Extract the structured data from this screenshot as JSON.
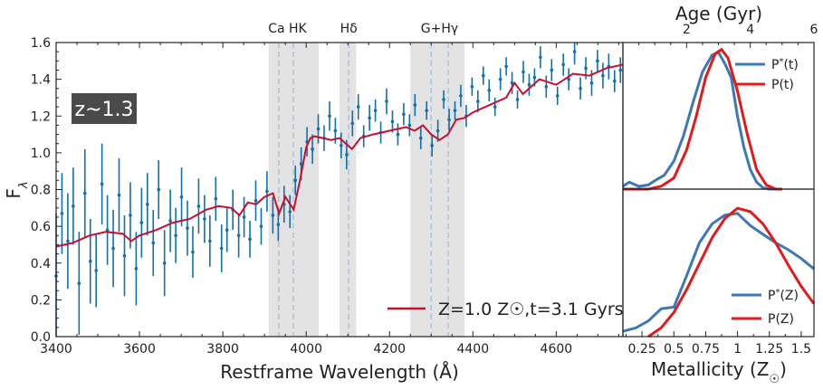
{
  "chart_data": [
    {
      "type": "line",
      "panel": "spectrum",
      "xlabel": "Restframe Wavelength (Å)",
      "ylabel": "Fλ",
      "xlim": [
        3400,
        4760
      ],
      "ylim": [
        0.0,
        1.6
      ],
      "xticks": [
        3400,
        3600,
        3800,
        4000,
        4200,
        4400,
        4600
      ],
      "yticks": [
        0.0,
        0.2,
        0.4,
        0.6,
        0.8,
        1.0,
        1.2,
        1.4,
        1.6
      ],
      "badge": "z~1.3",
      "line_labels": [
        {
          "text": "Ca HK",
          "x": 3955
        },
        {
          "text": "Hδ",
          "x": 4102
        },
        {
          "text": "G+Hγ",
          "x": 4320
        }
      ],
      "shaded_bands": [
        [
          3910,
          4030
        ],
        [
          4080,
          4120
        ],
        [
          4250,
          4380
        ]
      ],
      "line_markers": [
        3934,
        3969,
        4102,
        4300,
        4341
      ],
      "legend": "Z=1.0 Z☉,t=3.1 Gyrs",
      "series": [
        {
          "name": "Z=1.0 Z☉,t=3.1 Gyrs",
          "style": "line",
          "color": "#c8102e",
          "x": [
            3400,
            3440,
            3480,
            3520,
            3560,
            3580,
            3600,
            3640,
            3680,
            3720,
            3760,
            3790,
            3820,
            3840,
            3860,
            3880,
            3900,
            3920,
            3935,
            3950,
            3970,
            3985,
            4000,
            4010,
            4020,
            4040,
            4060,
            4080,
            4100,
            4110,
            4130,
            4160,
            4200,
            4240,
            4260,
            4280,
            4300,
            4320,
            4340,
            4360,
            4380,
            4400,
            4440,
            4480,
            4500,
            4520,
            4560,
            4600,
            4640,
            4680,
            4720,
            4760
          ],
          "y": [
            0.49,
            0.51,
            0.55,
            0.57,
            0.56,
            0.52,
            0.55,
            0.58,
            0.62,
            0.64,
            0.69,
            0.71,
            0.7,
            0.66,
            0.73,
            0.72,
            0.76,
            0.78,
            0.67,
            0.76,
            0.69,
            0.85,
            1.03,
            1.08,
            1.09,
            1.08,
            1.07,
            1.08,
            1.04,
            1.02,
            1.08,
            1.1,
            1.12,
            1.14,
            1.12,
            1.15,
            1.1,
            1.07,
            1.1,
            1.18,
            1.19,
            1.22,
            1.26,
            1.3,
            1.38,
            1.32,
            1.4,
            1.37,
            1.43,
            1.42,
            1.46,
            1.48
          ]
        },
        {
          "name": "",
          "style": "errorbar",
          "color": "#1170aa",
          "x": [
            3400,
            3414,
            3428,
            3441,
            3455,
            3469,
            3482,
            3496,
            3510,
            3523,
            3537,
            3551,
            3564,
            3578,
            3592,
            3605,
            3619,
            3633,
            3646,
            3660,
            3674,
            3687,
            3701,
            3715,
            3728,
            3742,
            3756,
            3769,
            3783,
            3797,
            3810,
            3824,
            3838,
            3851,
            3865,
            3879,
            3892,
            3906,
            3920,
            3933,
            3947,
            3961,
            3974,
            3988,
            4002,
            4015,
            4029,
            4043,
            4056,
            4070,
            4084,
            4097,
            4111,
            4125,
            4138,
            4152,
            4166,
            4179,
            4193,
            4207,
            4220,
            4234,
            4248,
            4261,
            4275,
            4289,
            4302,
            4316,
            4330,
            4343,
            4357,
            4371,
            4384,
            4398,
            4412,
            4425,
            4439,
            4453,
            4466,
            4480,
            4494,
            4507,
            4521,
            4535,
            4548,
            4562,
            4576,
            4589,
            4603,
            4617,
            4630,
            4644,
            4658,
            4671,
            4685,
            4699,
            4712,
            4726,
            4740,
            4754
          ],
          "y": [
            0.33,
            0.67,
            0.52,
            0.71,
            0.29,
            0.78,
            0.41,
            0.36,
            0.83,
            0.58,
            0.48,
            0.77,
            0.44,
            0.66,
            0.37,
            0.62,
            0.72,
            0.51,
            0.8,
            0.4,
            0.63,
            0.55,
            0.76,
            0.59,
            0.46,
            0.71,
            0.64,
            0.52,
            0.75,
            0.48,
            0.58,
            0.69,
            0.55,
            0.65,
            0.53,
            0.74,
            0.6,
            0.79,
            0.66,
            0.61,
            0.72,
            0.68,
            0.85,
            0.94,
            1.06,
            1.02,
            1.13,
            1.08,
            1.2,
            1.12,
            1.04,
            0.99,
            1.16,
            1.25,
            1.09,
            1.19,
            1.23,
            1.11,
            1.28,
            1.17,
            1.1,
            1.21,
            1.15,
            1.26,
            1.08,
            1.23,
            1.04,
            1.12,
            1.29,
            1.18,
            1.23,
            1.31,
            1.2,
            1.36,
            1.28,
            1.42,
            1.34,
            1.25,
            1.4,
            1.47,
            1.38,
            1.29,
            1.44,
            1.37,
            1.41,
            1.52,
            1.36,
            1.45,
            1.31,
            1.48,
            1.4,
            1.55,
            1.35,
            1.46,
            1.38,
            1.5,
            1.42,
            1.47,
            1.39,
            1.45
          ],
          "err": [
            0.34,
            0.22,
            0.26,
            0.21,
            0.28,
            0.24,
            0.23,
            0.2,
            0.22,
            0.19,
            0.21,
            0.2,
            0.22,
            0.18,
            0.2,
            0.19,
            0.17,
            0.18,
            0.16,
            0.18,
            0.17,
            0.15,
            0.16,
            0.15,
            0.14,
            0.15,
            0.13,
            0.14,
            0.12,
            0.13,
            0.12,
            0.11,
            0.12,
            0.11,
            0.1,
            0.11,
            0.1,
            0.11,
            0.1,
            0.09,
            0.1,
            0.09,
            0.08,
            0.09,
            0.08,
            0.08,
            0.08,
            0.07,
            0.08,
            0.07,
            0.07,
            0.08,
            0.07,
            0.07,
            0.06,
            0.07,
            0.06,
            0.06,
            0.07,
            0.06,
            0.06,
            0.06,
            0.06,
            0.06,
            0.06,
            0.05,
            0.06,
            0.06,
            0.05,
            0.06,
            0.05,
            0.06,
            0.06,
            0.05,
            0.06,
            0.05,
            0.06,
            0.05,
            0.06,
            0.05,
            0.06,
            0.05,
            0.06,
            0.06,
            0.05,
            0.06,
            0.06,
            0.06,
            0.05,
            0.06,
            0.06,
            0.07,
            0.06,
            0.06,
            0.07,
            0.06,
            0.07,
            0.07,
            0.06,
            0.07
          ]
        }
      ]
    },
    {
      "type": "line",
      "panel": "age",
      "xlabel": "Age (Gyr)",
      "xlim": [
        0.0,
        6.0
      ],
      "xticks": [
        2,
        4,
        6
      ],
      "ylim": [
        0.0,
        1.05
      ],
      "series": [
        {
          "name": "P*(t)",
          "color": "#3b78b5",
          "x": [
            0.0,
            0.2,
            0.5,
            0.8,
            1.0,
            1.3,
            1.6,
            1.9,
            2.2,
            2.5,
            2.8,
            3.0,
            3.2,
            3.4,
            3.6,
            3.8,
            4.0,
            4.2,
            4.4,
            4.6,
            4.8,
            5.0
          ],
          "y": [
            0.02,
            0.05,
            0.02,
            0.03,
            0.06,
            0.1,
            0.2,
            0.38,
            0.62,
            0.84,
            0.96,
            0.98,
            0.9,
            0.8,
            0.52,
            0.3,
            0.14,
            0.05,
            0.01,
            0.0,
            0.0,
            0.0
          ]
        },
        {
          "name": "P(t)",
          "color": "#e31a1c",
          "x": [
            0.0,
            0.4,
            0.8,
            1.2,
            1.6,
            2.0,
            2.3,
            2.6,
            2.9,
            3.1,
            3.3,
            3.6,
            3.9,
            4.2,
            4.5,
            4.8,
            5.0
          ],
          "y": [
            0.0,
            0.0,
            0.0,
            0.02,
            0.08,
            0.28,
            0.52,
            0.8,
            0.97,
            1.0,
            0.94,
            0.7,
            0.4,
            0.14,
            0.03,
            0.0,
            0.0
          ]
        }
      ],
      "legend": [
        "P*(t)",
        "P(t)"
      ]
    },
    {
      "type": "line",
      "panel": "metallicity",
      "xlabel": "Metallicity (Z☉)",
      "xlim": [
        0.1,
        1.6
      ],
      "xticks": [
        0.25,
        0.5,
        0.75,
        1.0,
        1.25,
        1.5
      ],
      "xtick_labels": [
        "0.25",
        "0.5",
        "0.75",
        "1",
        "1.25",
        "1.5"
      ],
      "ylim": [
        0.0,
        0.85
      ],
      "series": [
        {
          "name": "P*(Z)",
          "color": "#3b78b5",
          "x": [
            0.1,
            0.2,
            0.3,
            0.4,
            0.5,
            0.6,
            0.7,
            0.8,
            0.9,
            1.0,
            1.1,
            1.2,
            1.3,
            1.4,
            1.5,
            1.6
          ],
          "y": [
            0.03,
            0.05,
            0.09,
            0.16,
            0.17,
            0.35,
            0.54,
            0.65,
            0.7,
            0.71,
            0.64,
            0.59,
            0.54,
            0.5,
            0.45,
            0.39
          ]
        },
        {
          "name": "P(Z)",
          "color": "#e31a1c",
          "x": [
            0.3,
            0.4,
            0.5,
            0.6,
            0.7,
            0.8,
            0.9,
            1.0,
            1.1,
            1.2,
            1.3,
            1.4,
            1.5,
            1.6
          ],
          "y": [
            0.0,
            0.05,
            0.14,
            0.27,
            0.42,
            0.57,
            0.68,
            0.74,
            0.72,
            0.65,
            0.54,
            0.41,
            0.29,
            0.19
          ]
        }
      ],
      "legend": [
        "P*(Z)",
        "P(Z)"
      ]
    }
  ]
}
